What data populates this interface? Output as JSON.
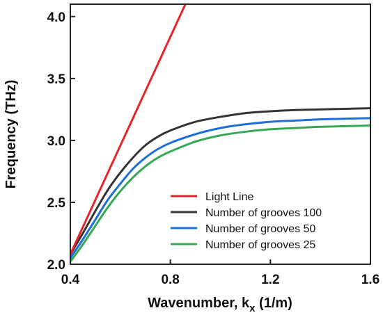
{
  "chart_data": {
    "type": "line",
    "xlabel": "Wavenumber, k",
    "xlabel_subscript": "x",
    "xlabel_units": " (1/m)",
    "ylabel": "Frequency (THz)",
    "xlim": [
      0.4,
      1.6
    ],
    "ylim": [
      2.0,
      4.1
    ],
    "x_ticks": [
      "0.4",
      "0.8",
      "1.2",
      "1.6"
    ],
    "x_tick_values": [
      0.4,
      0.8,
      1.2,
      1.6
    ],
    "y_ticks": [
      "2.0",
      "2.5",
      "3.0",
      "3.5",
      "4.0"
    ],
    "y_tick_values": [
      2.0,
      2.5,
      3.0,
      3.5,
      4.0
    ],
    "grid": false,
    "legend_position": "bottom-right",
    "series": [
      {
        "name": "Light Line",
        "color": "#e8242b",
        "x": [
          0.4,
          0.86
        ],
        "y": [
          2.08,
          4.1
        ]
      },
      {
        "name": "Number of grooves 100",
        "color": "#333333",
        "x": [
          0.4,
          0.45,
          0.5,
          0.55,
          0.6,
          0.65,
          0.7,
          0.75,
          0.8,
          0.9,
          1.0,
          1.1,
          1.2,
          1.3,
          1.4,
          1.5,
          1.6
        ],
        "y": [
          2.08,
          2.25,
          2.43,
          2.6,
          2.74,
          2.86,
          2.96,
          3.03,
          3.08,
          3.15,
          3.19,
          3.22,
          3.235,
          3.245,
          3.25,
          3.255,
          3.26
        ]
      },
      {
        "name": "Number of grooves 50",
        "color": "#1c6fd8",
        "x": [
          0.4,
          0.45,
          0.5,
          0.55,
          0.6,
          0.65,
          0.7,
          0.75,
          0.8,
          0.9,
          1.0,
          1.1,
          1.2,
          1.3,
          1.4,
          1.5,
          1.6
        ],
        "y": [
          2.05,
          2.2,
          2.36,
          2.52,
          2.65,
          2.77,
          2.86,
          2.93,
          2.98,
          3.05,
          3.1,
          3.13,
          3.15,
          3.16,
          3.17,
          3.175,
          3.18
        ]
      },
      {
        "name": "Number of grooves 25",
        "color": "#34a853",
        "x": [
          0.4,
          0.45,
          0.5,
          0.55,
          0.6,
          0.65,
          0.7,
          0.75,
          0.8,
          0.9,
          1.0,
          1.1,
          1.2,
          1.3,
          1.4,
          1.5,
          1.6
        ],
        "y": [
          2.02,
          2.16,
          2.31,
          2.46,
          2.59,
          2.7,
          2.79,
          2.86,
          2.91,
          2.99,
          3.04,
          3.07,
          3.09,
          3.1,
          3.11,
          3.115,
          3.12
        ]
      }
    ]
  }
}
